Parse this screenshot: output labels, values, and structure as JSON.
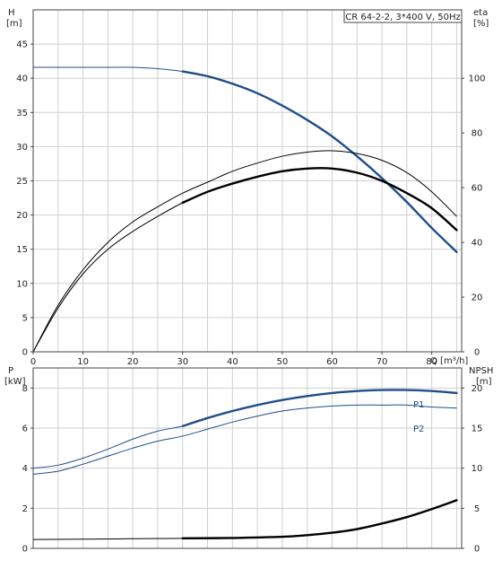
{
  "colors": {
    "blue": "#1f4e8c",
    "black": "#000000",
    "grid": "#cfcfcf"
  },
  "chart_data": [
    {
      "type": "line",
      "title": "CR 64-2-2, 3*400 V, 50Hz",
      "xlabel": "Q [m³/h]",
      "ylabel": "H",
      "yunit": "[m]",
      "y2label": "eta",
      "y2unit": "[%]",
      "xlim": [
        0,
        86
      ],
      "ylim": [
        0,
        50
      ],
      "y2lim": [
        0,
        125
      ],
      "xticks": [
        "0",
        "10",
        "20",
        "30",
        "40",
        "50",
        "60",
        "70",
        "80"
      ],
      "yticks": [
        "0",
        "5",
        "10",
        "15",
        "20",
        "25",
        "30",
        "35",
        "40",
        "45"
      ],
      "y2ticks": [
        "0",
        "20",
        "40",
        "60",
        "80",
        "100"
      ],
      "grid": true,
      "series": [
        {
          "axis": "left",
          "color": "#1f4e8c",
          "x": [
            0,
            5,
            10,
            15,
            20,
            25,
            30,
            35,
            40,
            45,
            50,
            55,
            60,
            65,
            70,
            75,
            80,
            85
          ],
          "y": [
            41.6,
            41.6,
            41.6,
            41.6,
            41.6,
            41.4,
            41.0,
            40.3,
            39.2,
            37.8,
            36.0,
            33.9,
            31.5,
            28.6,
            25.4,
            21.9,
            18.1,
            14.6
          ],
          "emphasis_from": 30
        },
        {
          "axis": "right",
          "color": "#000000",
          "x": [
            0,
            5,
            10,
            15,
            20,
            25,
            30,
            35,
            40,
            45,
            50,
            55,
            60,
            65,
            70,
            75,
            80,
            85
          ],
          "y": [
            0,
            17,
            30,
            40,
            47.5,
            53,
            58,
            62,
            66,
            69,
            71.5,
            73,
            73.5,
            72.5,
            70,
            65.5,
            58.5,
            49.5
          ],
          "emphasis_from": 86
        },
        {
          "axis": "right",
          "color": "#000000",
          "x": [
            0,
            5,
            10,
            15,
            20,
            25,
            30,
            35,
            40,
            45,
            50,
            55,
            60,
            65,
            70,
            75,
            80,
            85
          ],
          "y": [
            0,
            16,
            28.5,
            37.5,
            44,
            49.5,
            54.5,
            58.5,
            61.5,
            64,
            66,
            67,
            67,
            65.5,
            62.5,
            58,
            52.5,
            44.5
          ],
          "emphasis_from": 30
        }
      ]
    },
    {
      "type": "line",
      "xlim": [
        0,
        86
      ],
      "ylabel": "P",
      "yunit": "[kW]",
      "y2label": "NPSH",
      "y2unit": "[m]",
      "ylim": [
        0,
        9
      ],
      "y2lim": [
        0,
        22.5
      ],
      "yticks": [
        "0",
        "2",
        "4",
        "6",
        "8"
      ],
      "y2ticks": [
        "0",
        "5",
        "10",
        "15",
        "20"
      ],
      "grid": true,
      "series": [
        {
          "name": "P1",
          "axis": "left",
          "color": "#1f4e8c",
          "x": [
            0,
            5,
            10,
            15,
            20,
            25,
            30,
            35,
            40,
            45,
            50,
            55,
            60,
            65,
            70,
            75,
            80,
            85
          ],
          "y": [
            4.0,
            4.15,
            4.5,
            4.95,
            5.45,
            5.85,
            6.1,
            6.5,
            6.85,
            7.15,
            7.4,
            7.6,
            7.75,
            7.85,
            7.9,
            7.9,
            7.85,
            7.75
          ],
          "emphasis_from": 30
        },
        {
          "name": "P2",
          "axis": "left",
          "color": "#1f4e8c",
          "x": [
            0,
            5,
            10,
            15,
            20,
            25,
            30,
            35,
            40,
            45,
            50,
            55,
            60,
            65,
            70,
            75,
            80,
            85
          ],
          "y": [
            3.7,
            3.85,
            4.2,
            4.6,
            5.0,
            5.35,
            5.6,
            5.95,
            6.3,
            6.6,
            6.85,
            7.0,
            7.1,
            7.15,
            7.15,
            7.15,
            7.05,
            7.0
          ],
          "emphasis_from": 86
        },
        {
          "axis": "right",
          "color": "#000000",
          "x": [
            0,
            10,
            20,
            30,
            40,
            50,
            55,
            60,
            65,
            70,
            75,
            80,
            85
          ],
          "y": [
            1.1,
            1.15,
            1.2,
            1.25,
            1.3,
            1.45,
            1.65,
            1.95,
            2.4,
            3.1,
            3.9,
            4.9,
            6.0
          ],
          "emphasis_from": 30
        }
      ]
    }
  ]
}
